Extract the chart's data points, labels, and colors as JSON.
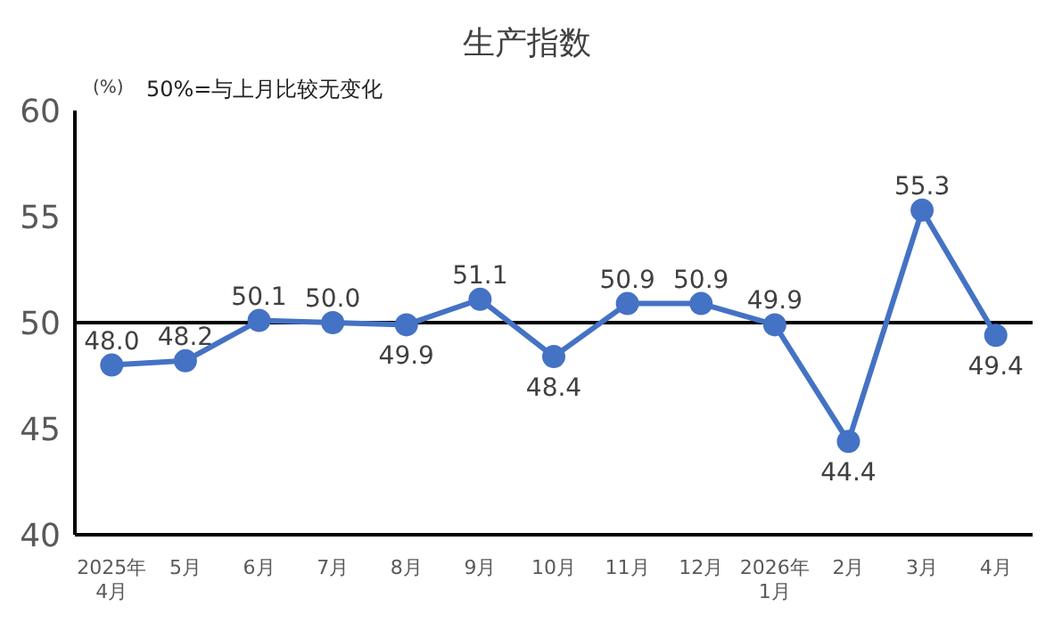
{
  "chart_data": {
    "type": "line",
    "title": "生产指数",
    "ylabel": "(%)",
    "annotations": [
      "50%=与上月比较无变化"
    ],
    "categories": [
      "2025年\n4月",
      "5月",
      "6月",
      "7月",
      "8月",
      "9月",
      "10月",
      "11月",
      "12月",
      "2026年\n1月",
      "2月",
      "3月",
      "4月"
    ],
    "series": [
      {
        "color": "#4472c4",
        "values": [
          48.0,
          48.2,
          50.1,
          50.0,
          49.9,
          51.1,
          48.4,
          50.9,
          50.9,
          49.9,
          44.4,
          55.3,
          49.4
        ],
        "value_labels": [
          "48.0",
          "48.2",
          "50.1",
          "50.0",
          "49.9",
          "51.1",
          "48.4",
          "50.9",
          "50.9",
          "49.9",
          "44.4",
          "55.3",
          "49.4"
        ]
      }
    ],
    "ylim": [
      40,
      60
    ],
    "yticks": [
      40,
      45,
      50,
      55,
      60
    ],
    "grid": false,
    "legend": false,
    "marker": "circle",
    "line_style": "solid",
    "ref_lines": [
      {
        "axis": "y",
        "value": 50,
        "color": "#000000"
      }
    ]
  }
}
